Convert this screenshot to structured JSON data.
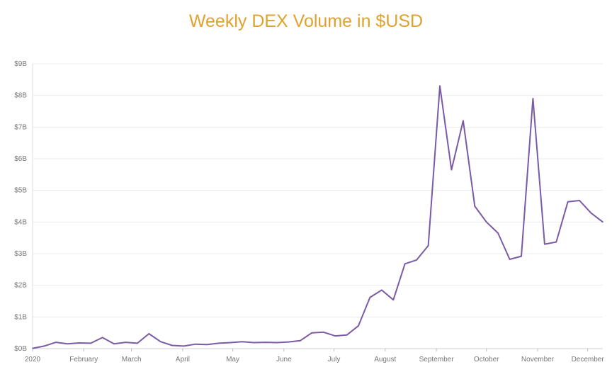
{
  "chart_data": {
    "type": "line",
    "title": "Weekly DEX Volume in $USD",
    "xlabel": "",
    "ylabel": "",
    "ylim": [
      0,
      9
    ],
    "y_unit": "billions USD",
    "y_ticks": [
      0,
      1,
      2,
      3,
      4,
      5,
      6,
      7,
      8,
      9
    ],
    "y_tick_labels": [
      "$0B",
      "$1B",
      "$2B",
      "$3B",
      "$4B",
      "$5B",
      "$6B",
      "$7B",
      "$8B",
      "$9B"
    ],
    "x_ticks": [
      {
        "week": 0,
        "label": "2020"
      },
      {
        "week": 4.4,
        "label": "February"
      },
      {
        "week": 8.5,
        "label": "March"
      },
      {
        "week": 12.9,
        "label": "April"
      },
      {
        "week": 17.2,
        "label": "May"
      },
      {
        "week": 21.6,
        "label": "June"
      },
      {
        "week": 25.9,
        "label": "July"
      },
      {
        "week": 30.3,
        "label": "August"
      },
      {
        "week": 34.7,
        "label": "September"
      },
      {
        "week": 39,
        "label": "October"
      },
      {
        "week": 43.4,
        "label": "November"
      },
      {
        "week": 47.7,
        "label": "December"
      }
    ],
    "xlim": [
      0,
      49
    ],
    "grid": true,
    "color": "#7b5aa6",
    "title_color": "#e0a22e",
    "series": [
      {
        "values": [
          0.01,
          0.08,
          0.2,
          0.15,
          0.18,
          0.17,
          0.35,
          0.15,
          0.2,
          0.17,
          0.47,
          0.22,
          0.1,
          0.08,
          0.14,
          0.13,
          0.17,
          0.19,
          0.22,
          0.19,
          0.2,
          0.19,
          0.21,
          0.25,
          0.5,
          0.52,
          0.4,
          0.43,
          0.72,
          1.62,
          1.85,
          1.54,
          2.68,
          2.8,
          3.25,
          8.3,
          5.65,
          7.2,
          4.5,
          4.0,
          3.65,
          2.82,
          2.92,
          7.9,
          3.3,
          3.37,
          4.64,
          4.68,
          4.28,
          4.0
        ]
      }
    ]
  }
}
